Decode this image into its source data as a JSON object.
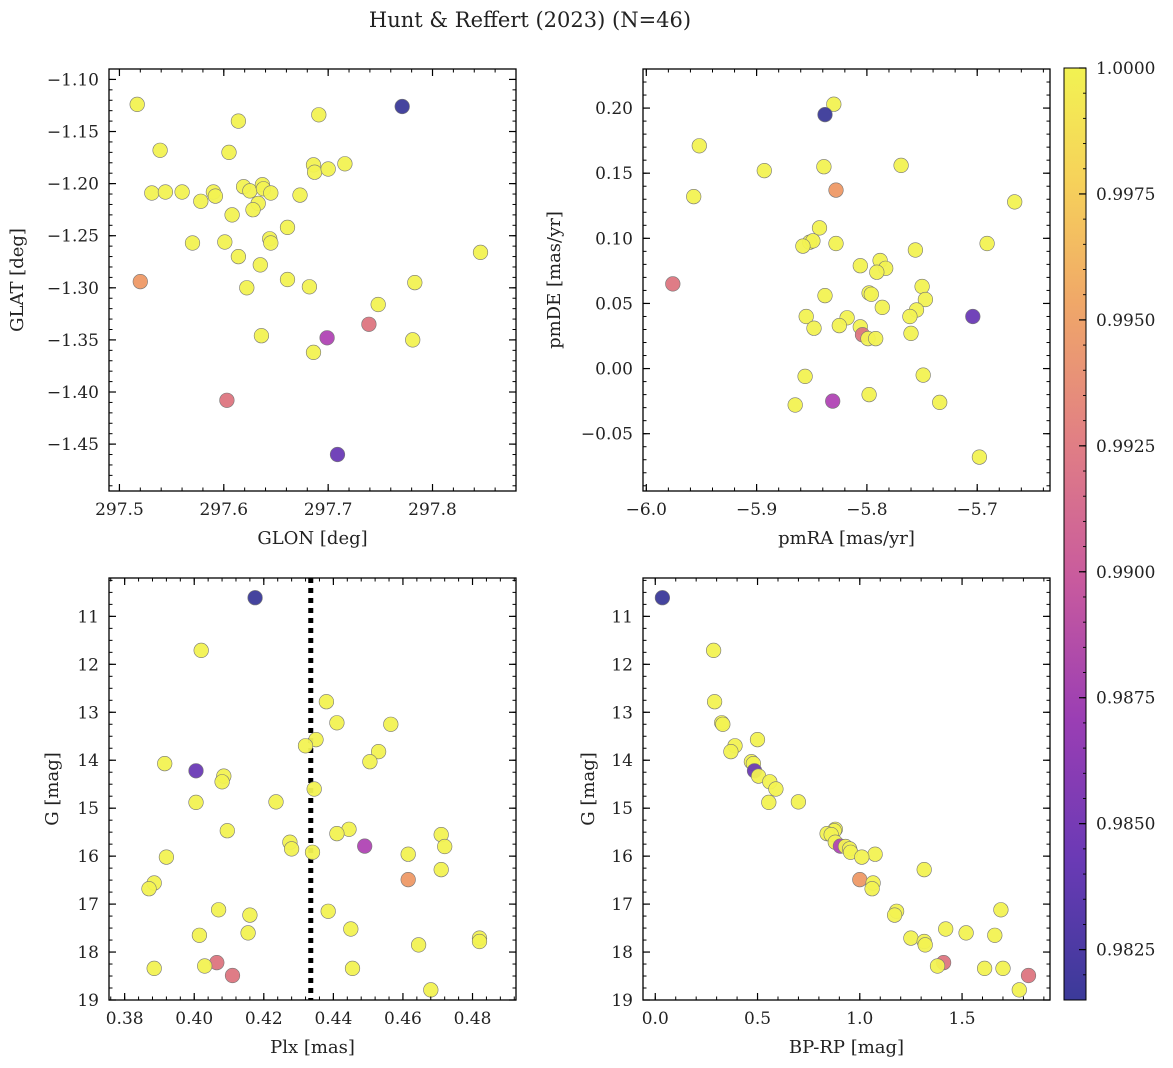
{
  "figure": {
    "title": "Hunt & Reffert (2023) (N=46)"
  },
  "colorbar": {
    "vmin": 0.9815,
    "vmax": 1.0,
    "ticks": [
      0.9825,
      0.985,
      0.9875,
      0.99,
      0.9925,
      0.995,
      0.9975,
      1.0
    ],
    "tick_labels": [
      "0.9825",
      "0.9850",
      "0.9875",
      "0.9900",
      "0.9925",
      "0.9950",
      "0.9975",
      "1.0000"
    ],
    "colormap": "plasma"
  },
  "colors": {
    "c_dark": "#3b3a99",
    "c_purple": "#6a3ab5",
    "c_magenta": "#b044b4",
    "c_pink": "#dd7580",
    "c_orange": "#ee9966",
    "c_yellow": "#f2f252"
  },
  "chart_data": [
    {
      "type": "scatter",
      "id": "glon-glat",
      "xlabel": "GLON [deg]",
      "ylabel": "GLAT [deg]",
      "xlim": [
        297.49,
        297.88
      ],
      "ylim": [
        -1.495,
        -1.09
      ],
      "y_inverted": false,
      "xticks": [
        297.5,
        297.6,
        297.7,
        297.8
      ],
      "xtick_labels": [
        "297.5",
        "297.6",
        "297.7",
        "297.8"
      ],
      "yticks": [
        -1.45,
        -1.4,
        -1.35,
        -1.3,
        -1.25,
        -1.2,
        -1.15,
        -1.1
      ],
      "ytick_labels": [
        "−1.45",
        "−1.40",
        "−1.35",
        "−1.30",
        "−1.25",
        "−1.20",
        "−1.15",
        "−1.10"
      ],
      "points": [
        {
          "x": 297.517,
          "y": -1.124,
          "c": 1.0
        },
        {
          "x": 297.771,
          "y": -1.126,
          "c": 0.982
        },
        {
          "x": 297.614,
          "y": -1.14,
          "c": 1.0
        },
        {
          "x": 297.691,
          "y": -1.134,
          "c": 1.0
        },
        {
          "x": 297.539,
          "y": -1.168,
          "c": 1.0
        },
        {
          "x": 297.605,
          "y": -1.17,
          "c": 1.0
        },
        {
          "x": 297.686,
          "y": -1.182,
          "c": 1.0
        },
        {
          "x": 297.716,
          "y": -1.181,
          "c": 1.0
        },
        {
          "x": 297.687,
          "y": -1.189,
          "c": 1.0
        },
        {
          "x": 297.7,
          "y": -1.186,
          "c": 1.0
        },
        {
          "x": 297.531,
          "y": -1.209,
          "c": 1.0
        },
        {
          "x": 297.544,
          "y": -1.208,
          "c": 1.0
        },
        {
          "x": 297.56,
          "y": -1.208,
          "c": 1.0
        },
        {
          "x": 297.59,
          "y": -1.208,
          "c": 1.0
        },
        {
          "x": 297.592,
          "y": -1.212,
          "c": 1.0
        },
        {
          "x": 297.619,
          "y": -1.203,
          "c": 1.0
        },
        {
          "x": 297.625,
          "y": -1.207,
          "c": 1.0
        },
        {
          "x": 297.637,
          "y": -1.201,
          "c": 1.0
        },
        {
          "x": 297.638,
          "y": -1.205,
          "c": 1.0
        },
        {
          "x": 297.645,
          "y": -1.209,
          "c": 1.0
        },
        {
          "x": 297.673,
          "y": -1.211,
          "c": 1.0
        },
        {
          "x": 297.578,
          "y": -1.217,
          "c": 1.0
        },
        {
          "x": 297.633,
          "y": -1.219,
          "c": 1.0
        },
        {
          "x": 297.628,
          "y": -1.225,
          "c": 1.0
        },
        {
          "x": 297.608,
          "y": -1.23,
          "c": 1.0
        },
        {
          "x": 297.661,
          "y": -1.242,
          "c": 1.0
        },
        {
          "x": 297.644,
          "y": -1.253,
          "c": 1.0
        },
        {
          "x": 297.645,
          "y": -1.257,
          "c": 1.0
        },
        {
          "x": 297.57,
          "y": -1.257,
          "c": 1.0
        },
        {
          "x": 297.601,
          "y": -1.256,
          "c": 1.0
        },
        {
          "x": 297.614,
          "y": -1.27,
          "c": 1.0
        },
        {
          "x": 297.635,
          "y": -1.278,
          "c": 1.0
        },
        {
          "x": 297.846,
          "y": -1.266,
          "c": 1.0
        },
        {
          "x": 297.661,
          "y": -1.292,
          "c": 1.0
        },
        {
          "x": 297.52,
          "y": -1.294,
          "c": 0.9955
        },
        {
          "x": 297.622,
          "y": -1.3,
          "c": 1.0
        },
        {
          "x": 297.682,
          "y": -1.299,
          "c": 1.0
        },
        {
          "x": 297.783,
          "y": -1.295,
          "c": 1.0
        },
        {
          "x": 297.748,
          "y": -1.316,
          "c": 1.0
        },
        {
          "x": 297.739,
          "y": -1.335,
          "c": 0.9925
        },
        {
          "x": 297.636,
          "y": -1.346,
          "c": 1.0
        },
        {
          "x": 297.699,
          "y": -1.348,
          "c": 0.9885
        },
        {
          "x": 297.781,
          "y": -1.35,
          "c": 1.0
        },
        {
          "x": 297.686,
          "y": -1.362,
          "c": 1.0
        },
        {
          "x": 297.603,
          "y": -1.408,
          "c": 0.9925
        },
        {
          "x": 297.709,
          "y": -1.46,
          "c": 0.984
        }
      ]
    },
    {
      "type": "scatter",
      "id": "pmra-pmde",
      "xlabel": "pmRA [mas/yr]",
      "ylabel": "pmDE [mas/yr]",
      "xlim": [
        -6.003,
        -5.634
      ],
      "ylim": [
        -0.094,
        0.23
      ],
      "y_inverted": false,
      "xticks": [
        -6.0,
        -5.9,
        -5.8,
        -5.7
      ],
      "xtick_labels": [
        "−6.0",
        "−5.9",
        "−5.8",
        "−5.7"
      ],
      "yticks": [
        -0.05,
        0.0,
        0.05,
        0.1,
        0.15,
        0.2
      ],
      "ytick_labels": [
        "−0.05",
        "0.00",
        "0.05",
        "0.10",
        "0.15",
        "0.20"
      ],
      "points": [
        {
          "x": -5.83,
          "y": 0.203,
          "c": 1.0
        },
        {
          "x": -5.838,
          "y": 0.195,
          "c": 0.982
        },
        {
          "x": -5.952,
          "y": 0.171,
          "c": 1.0
        },
        {
          "x": -5.769,
          "y": 0.156,
          "c": 1.0
        },
        {
          "x": -5.839,
          "y": 0.155,
          "c": 1.0
        },
        {
          "x": -5.893,
          "y": 0.152,
          "c": 1.0
        },
        {
          "x": -5.828,
          "y": 0.137,
          "c": 0.9955
        },
        {
          "x": -5.957,
          "y": 0.132,
          "c": 1.0
        },
        {
          "x": -5.666,
          "y": 0.128,
          "c": 1.0
        },
        {
          "x": -5.843,
          "y": 0.108,
          "c": 1.0
        },
        {
          "x": -5.852,
          "y": 0.097,
          "c": 1.0
        },
        {
          "x": -5.849,
          "y": 0.098,
          "c": 1.0
        },
        {
          "x": -5.828,
          "y": 0.096,
          "c": 1.0
        },
        {
          "x": -5.858,
          "y": 0.094,
          "c": 1.0
        },
        {
          "x": -5.691,
          "y": 0.096,
          "c": 1.0
        },
        {
          "x": -5.756,
          "y": 0.091,
          "c": 1.0
        },
        {
          "x": -5.788,
          "y": 0.083,
          "c": 1.0
        },
        {
          "x": -5.806,
          "y": 0.079,
          "c": 1.0
        },
        {
          "x": -5.783,
          "y": 0.077,
          "c": 1.0
        },
        {
          "x": -5.791,
          "y": 0.074,
          "c": 1.0
        },
        {
          "x": -5.976,
          "y": 0.065,
          "c": 0.993
        },
        {
          "x": -5.75,
          "y": 0.063,
          "c": 1.0
        },
        {
          "x": -5.798,
          "y": 0.058,
          "c": 1.0
        },
        {
          "x": -5.796,
          "y": 0.057,
          "c": 1.0
        },
        {
          "x": -5.838,
          "y": 0.056,
          "c": 1.0
        },
        {
          "x": -5.747,
          "y": 0.053,
          "c": 1.0
        },
        {
          "x": -5.786,
          "y": 0.047,
          "c": 1.0
        },
        {
          "x": -5.755,
          "y": 0.045,
          "c": 1.0
        },
        {
          "x": -5.704,
          "y": 0.04,
          "c": 0.984
        },
        {
          "x": -5.855,
          "y": 0.04,
          "c": 1.0
        },
        {
          "x": -5.818,
          "y": 0.039,
          "c": 1.0
        },
        {
          "x": -5.761,
          "y": 0.04,
          "c": 1.0
        },
        {
          "x": -5.825,
          "y": 0.033,
          "c": 1.0
        },
        {
          "x": -5.848,
          "y": 0.031,
          "c": 1.0
        },
        {
          "x": -5.806,
          "y": 0.032,
          "c": 1.0
        },
        {
          "x": -5.804,
          "y": 0.026,
          "c": 0.993
        },
        {
          "x": -5.76,
          "y": 0.027,
          "c": 1.0
        },
        {
          "x": -5.799,
          "y": 0.023,
          "c": 1.0
        },
        {
          "x": -5.792,
          "y": 0.023,
          "c": 1.0
        },
        {
          "x": -5.749,
          "y": -0.005,
          "c": 1.0
        },
        {
          "x": -5.856,
          "y": -0.006,
          "c": 1.0
        },
        {
          "x": -5.798,
          "y": -0.02,
          "c": 1.0
        },
        {
          "x": -5.831,
          "y": -0.025,
          "c": 0.9885
        },
        {
          "x": -5.734,
          "y": -0.026,
          "c": 1.0
        },
        {
          "x": -5.865,
          "y": -0.028,
          "c": 1.0
        },
        {
          "x": -5.698,
          "y": -0.068,
          "c": 1.0
        }
      ]
    },
    {
      "type": "scatter",
      "id": "plx-g",
      "xlabel": "Plx [mas]",
      "ylabel": "G [mag]",
      "xlim": [
        0.3755,
        0.4925
      ],
      "ylim": [
        19.0,
        10.2
      ],
      "y_inverted": true,
      "vline": {
        "x": 0.4335,
        "style": "dotted"
      },
      "xticks": [
        0.38,
        0.4,
        0.42,
        0.44,
        0.46,
        0.48
      ],
      "xtick_labels": [
        "0.38",
        "0.40",
        "0.42",
        "0.44",
        "0.46",
        "0.48"
      ],
      "yticks": [
        11,
        12,
        13,
        14,
        15,
        16,
        17,
        18,
        19
      ],
      "ytick_labels": [
        "11",
        "12",
        "13",
        "14",
        "15",
        "16",
        "17",
        "18",
        "19"
      ],
      "points": [
        {
          "x": 0.4175,
          "y": 10.61,
          "c": 0.982
        },
        {
          "x": 0.402,
          "y": 11.71,
          "c": 1.0
        },
        {
          "x": 0.438,
          "y": 12.78,
          "c": 1.0
        },
        {
          "x": 0.441,
          "y": 13.22,
          "c": 1.0
        },
        {
          "x": 0.4565,
          "y": 13.25,
          "c": 1.0
        },
        {
          "x": 0.435,
          "y": 13.57,
          "c": 1.0
        },
        {
          "x": 0.432,
          "y": 13.7,
          "c": 1.0
        },
        {
          "x": 0.453,
          "y": 13.82,
          "c": 1.0
        },
        {
          "x": 0.4505,
          "y": 14.03,
          "c": 1.0
        },
        {
          "x": 0.3915,
          "y": 14.07,
          "c": 1.0
        },
        {
          "x": 0.4005,
          "y": 14.22,
          "c": 0.984
        },
        {
          "x": 0.4085,
          "y": 14.33,
          "c": 1.0
        },
        {
          "x": 0.408,
          "y": 14.45,
          "c": 1.0
        },
        {
          "x": 0.4345,
          "y": 14.6,
          "c": 1.0
        },
        {
          "x": 0.4005,
          "y": 14.88,
          "c": 1.0
        },
        {
          "x": 0.4235,
          "y": 14.87,
          "c": 1.0
        },
        {
          "x": 0.4445,
          "y": 15.44,
          "c": 1.0
        },
        {
          "x": 0.4095,
          "y": 15.47,
          "c": 1.0
        },
        {
          "x": 0.441,
          "y": 15.53,
          "c": 1.0
        },
        {
          "x": 0.471,
          "y": 15.55,
          "c": 1.0
        },
        {
          "x": 0.4275,
          "y": 15.71,
          "c": 1.0
        },
        {
          "x": 0.449,
          "y": 15.79,
          "c": 0.9885
        },
        {
          "x": 0.472,
          "y": 15.8,
          "c": 1.0
        },
        {
          "x": 0.428,
          "y": 15.85,
          "c": 1.0
        },
        {
          "x": 0.434,
          "y": 15.92,
          "c": 1.0
        },
        {
          "x": 0.4615,
          "y": 15.96,
          "c": 1.0
        },
        {
          "x": 0.392,
          "y": 16.02,
          "c": 1.0
        },
        {
          "x": 0.471,
          "y": 16.28,
          "c": 1.0
        },
        {
          "x": 0.4615,
          "y": 16.49,
          "c": 0.9955
        },
        {
          "x": 0.3885,
          "y": 16.56,
          "c": 1.0
        },
        {
          "x": 0.387,
          "y": 16.68,
          "c": 1.0
        },
        {
          "x": 0.407,
          "y": 17.12,
          "c": 1.0
        },
        {
          "x": 0.4385,
          "y": 17.15,
          "c": 1.0
        },
        {
          "x": 0.416,
          "y": 17.23,
          "c": 1.0
        },
        {
          "x": 0.445,
          "y": 17.52,
          "c": 1.0
        },
        {
          "x": 0.4155,
          "y": 17.6,
          "c": 1.0
        },
        {
          "x": 0.4015,
          "y": 17.65,
          "c": 1.0
        },
        {
          "x": 0.482,
          "y": 17.71,
          "c": 1.0
        },
        {
          "x": 0.482,
          "y": 17.78,
          "c": 1.0
        },
        {
          "x": 0.4645,
          "y": 17.85,
          "c": 1.0
        },
        {
          "x": 0.4065,
          "y": 18.22,
          "c": 0.993
        },
        {
          "x": 0.403,
          "y": 18.29,
          "c": 1.0
        },
        {
          "x": 0.3885,
          "y": 18.34,
          "c": 1.0
        },
        {
          "x": 0.4455,
          "y": 18.34,
          "c": 1.0
        },
        {
          "x": 0.411,
          "y": 18.49,
          "c": 0.993
        },
        {
          "x": 0.468,
          "y": 18.79,
          "c": 1.0
        }
      ]
    },
    {
      "type": "scatter",
      "id": "bprp-g",
      "xlabel": "BP-RP [mag]",
      "ylabel": "G [mag]",
      "xlim": [
        -0.06,
        1.93
      ],
      "ylim": [
        19.0,
        10.2
      ],
      "y_inverted": true,
      "xticks": [
        0.0,
        0.5,
        1.0,
        1.5
      ],
      "xtick_labels": [
        "0.0",
        "0.5",
        "1.0",
        "1.5"
      ],
      "yticks": [
        11,
        12,
        13,
        14,
        15,
        16,
        17,
        18,
        19
      ],
      "ytick_labels": [
        "11",
        "12",
        "13",
        "14",
        "15",
        "16",
        "17",
        "18",
        "19"
      ],
      "points": [
        {
          "x": 0.035,
          "y": 10.61,
          "c": 0.982
        },
        {
          "x": 0.285,
          "y": 11.71,
          "c": 1.0
        },
        {
          "x": 0.29,
          "y": 12.78,
          "c": 1.0
        },
        {
          "x": 0.325,
          "y": 13.22,
          "c": 1.0
        },
        {
          "x": 0.33,
          "y": 13.25,
          "c": 1.0
        },
        {
          "x": 0.5,
          "y": 13.57,
          "c": 1.0
        },
        {
          "x": 0.39,
          "y": 13.7,
          "c": 1.0
        },
        {
          "x": 0.37,
          "y": 13.82,
          "c": 1.0
        },
        {
          "x": 0.47,
          "y": 14.03,
          "c": 1.0
        },
        {
          "x": 0.48,
          "y": 14.07,
          "c": 1.0
        },
        {
          "x": 0.485,
          "y": 14.22,
          "c": 0.984
        },
        {
          "x": 0.505,
          "y": 14.33,
          "c": 1.0
        },
        {
          "x": 0.56,
          "y": 14.45,
          "c": 1.0
        },
        {
          "x": 0.59,
          "y": 14.6,
          "c": 1.0
        },
        {
          "x": 0.555,
          "y": 14.88,
          "c": 1.0
        },
        {
          "x": 0.7,
          "y": 14.87,
          "c": 1.0
        },
        {
          "x": 0.88,
          "y": 15.44,
          "c": 1.0
        },
        {
          "x": 0.875,
          "y": 15.47,
          "c": 1.0
        },
        {
          "x": 0.84,
          "y": 15.53,
          "c": 1.0
        },
        {
          "x": 0.86,
          "y": 15.55,
          "c": 1.0
        },
        {
          "x": 0.88,
          "y": 15.71,
          "c": 1.0
        },
        {
          "x": 0.905,
          "y": 15.79,
          "c": 0.9885
        },
        {
          "x": 0.93,
          "y": 15.8,
          "c": 1.0
        },
        {
          "x": 0.95,
          "y": 15.85,
          "c": 1.0
        },
        {
          "x": 0.955,
          "y": 15.92,
          "c": 1.0
        },
        {
          "x": 1.075,
          "y": 15.96,
          "c": 1.0
        },
        {
          "x": 1.01,
          "y": 16.02,
          "c": 1.0
        },
        {
          "x": 1.315,
          "y": 16.28,
          "c": 1.0
        },
        {
          "x": 1.0,
          "y": 16.49,
          "c": 0.9955
        },
        {
          "x": 1.065,
          "y": 16.56,
          "c": 1.0
        },
        {
          "x": 1.06,
          "y": 16.68,
          "c": 1.0
        },
        {
          "x": 1.69,
          "y": 17.12,
          "c": 1.0
        },
        {
          "x": 1.18,
          "y": 17.15,
          "c": 1.0
        },
        {
          "x": 1.17,
          "y": 17.23,
          "c": 1.0
        },
        {
          "x": 1.42,
          "y": 17.52,
          "c": 1.0
        },
        {
          "x": 1.52,
          "y": 17.6,
          "c": 1.0
        },
        {
          "x": 1.66,
          "y": 17.65,
          "c": 1.0
        },
        {
          "x": 1.25,
          "y": 17.71,
          "c": 1.0
        },
        {
          "x": 1.315,
          "y": 17.78,
          "c": 1.0
        },
        {
          "x": 1.32,
          "y": 17.85,
          "c": 1.0
        },
        {
          "x": 1.41,
          "y": 18.22,
          "c": 0.993
        },
        {
          "x": 1.38,
          "y": 18.29,
          "c": 1.0
        },
        {
          "x": 1.61,
          "y": 18.34,
          "c": 1.0
        },
        {
          "x": 1.7,
          "y": 18.34,
          "c": 1.0
        },
        {
          "x": 1.825,
          "y": 18.49,
          "c": 0.993
        },
        {
          "x": 1.78,
          "y": 18.79,
          "c": 1.0
        }
      ]
    }
  ]
}
